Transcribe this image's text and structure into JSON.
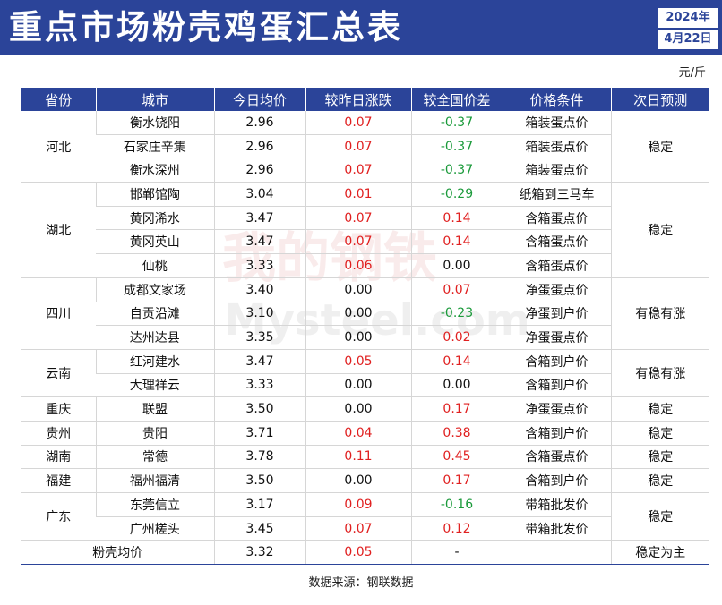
{
  "title": "重点市场粉壳鸡蛋汇总表",
  "year": "2024年",
  "date": "4月22日",
  "unit": "元/斤",
  "columns": [
    "省份",
    "城市",
    "今日均价",
    "较昨日涨跌",
    "较全国价差",
    "价格条件",
    "次日预测"
  ],
  "rows": [
    {
      "province": "河北",
      "city": "衡水饶阳",
      "price": "2.96",
      "change": "0.07",
      "diff": "-0.37",
      "condition": "箱装蛋点价",
      "forecast": "稳定"
    },
    {
      "province": "",
      "city": "石家庄辛集",
      "price": "2.96",
      "change": "0.07",
      "diff": "-0.37",
      "condition": "箱装蛋点价",
      "forecast": ""
    },
    {
      "province": "",
      "city": "衡水深州",
      "price": "2.96",
      "change": "0.07",
      "diff": "-0.37",
      "condition": "箱装蛋点价",
      "forecast": ""
    },
    {
      "province": "湖北",
      "city": "邯郸馆陶",
      "price": "3.04",
      "change": "0.01",
      "diff": "-0.29",
      "condition": "纸箱到三马车",
      "forecast": "稳定"
    },
    {
      "province": "",
      "city": "黄冈浠水",
      "price": "3.47",
      "change": "0.07",
      "diff": "0.14",
      "condition": "含箱蛋点价",
      "forecast": ""
    },
    {
      "province": "",
      "city": "黄冈英山",
      "price": "3.47",
      "change": "0.07",
      "diff": "0.14",
      "condition": "含箱蛋点价",
      "forecast": ""
    },
    {
      "province": "",
      "city": "仙桃",
      "price": "3.33",
      "change": "0.06",
      "diff": "0.00",
      "condition": "含箱蛋点价",
      "forecast": ""
    },
    {
      "province": "四川",
      "city": "成都文家场",
      "price": "3.40",
      "change": "0.00",
      "diff": "0.07",
      "condition": "净蛋蛋点价",
      "forecast": "有稳有涨"
    },
    {
      "province": "",
      "city": "自贡沿滩",
      "price": "3.10",
      "change": "0.00",
      "diff": "-0.23",
      "condition": "净蛋到户价",
      "forecast": ""
    },
    {
      "province": "",
      "city": "达州达县",
      "price": "3.35",
      "change": "0.00",
      "diff": "0.02",
      "condition": "净蛋蛋点价",
      "forecast": ""
    },
    {
      "province": "云南",
      "city": "红河建水",
      "price": "3.47",
      "change": "0.05",
      "diff": "0.14",
      "condition": "含箱到户价",
      "forecast": "有稳有涨"
    },
    {
      "province": "",
      "city": "大理祥云",
      "price": "3.33",
      "change": "0.00",
      "diff": "0.00",
      "condition": "含箱到户价",
      "forecast": ""
    },
    {
      "province": "重庆",
      "city": "联盟",
      "price": "3.50",
      "change": "0.00",
      "diff": "0.17",
      "condition": "净蛋蛋点价",
      "forecast": "稳定"
    },
    {
      "province": "贵州",
      "city": "贵阳",
      "price": "3.71",
      "change": "0.04",
      "diff": "0.38",
      "condition": "含箱到户价",
      "forecast": "稳定"
    },
    {
      "province": "湖南",
      "city": "常德",
      "price": "3.78",
      "change": "0.11",
      "diff": "0.45",
      "condition": "含箱蛋点价",
      "forecast": "稳定"
    },
    {
      "province": "福建",
      "city": "福州福清",
      "price": "3.50",
      "change": "0.00",
      "diff": "0.17",
      "condition": "含箱到户价",
      "forecast": "稳定"
    },
    {
      "province": "广东",
      "city": "东莞信立",
      "price": "3.17",
      "change": "0.09",
      "diff": "-0.16",
      "condition": "带箱批发价",
      "forecast": "稳定"
    },
    {
      "province": "",
      "city": "广州槎头",
      "price": "3.45",
      "change": "0.07",
      "diff": "0.12",
      "condition": "带箱批发价",
      "forecast": ""
    }
  ],
  "avg_row": {
    "label": "粉壳均价",
    "price": "3.32",
    "change": "0.05",
    "diff": "-",
    "condition": "",
    "forecast": "稳定为主"
  },
  "source": "数据来源：钢联数据",
  "watermark_top": "我的钢铁",
  "watermark_bottom": "Mysteel.com",
  "colors": {
    "header_bg": "#2b4499",
    "up": "#e02020",
    "down": "#1a9a3a"
  }
}
